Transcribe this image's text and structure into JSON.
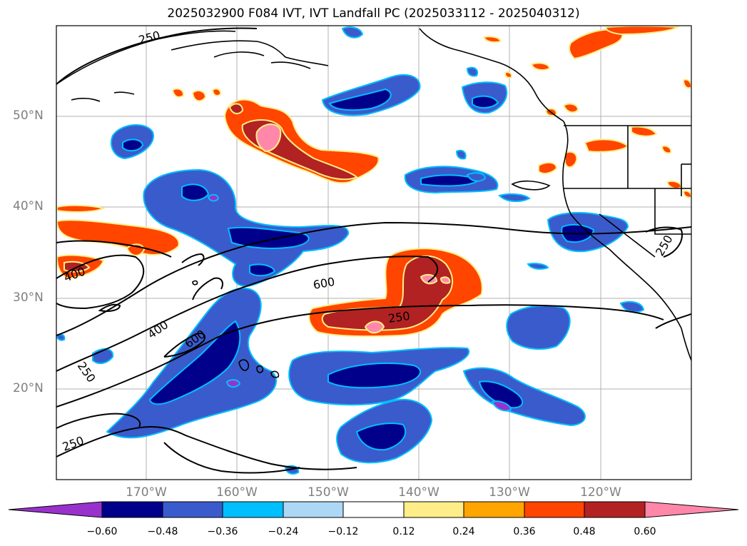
{
  "title": "2025032900 F084 IVT, IVT Landfall PC (2025033112 - 2025040312)",
  "lat_labels": [
    "50°N",
    "40°N",
    "30°N",
    "20°N"
  ],
  "lon_labels": [
    "170°W",
    "160°W",
    "150°W",
    "140°W",
    "130°W",
    "120°W"
  ],
  "colorbar": {
    "colors": [
      "#9932cc",
      "#00008b",
      "#3a5bcc",
      "#00bfff",
      "#add8f5",
      "#ffffff",
      "#ffee88",
      "#ffa500",
      "#ff4500",
      "#b22222",
      "#ff88aa"
    ],
    "tick_labels": [
      "−0.60",
      "−0.48",
      "−0.36",
      "−0.24",
      "−0.12",
      "0.12",
      "0.24",
      "0.36",
      "0.48",
      "0.60"
    ]
  },
  "contour_labels": {
    "c250_nw": "250",
    "c400_w": "400",
    "c600_c": "600",
    "c250_c": "250",
    "c400_sw": "400",
    "c600_sw": "600",
    "c250_sw1": "250",
    "c250_sw2": "250",
    "c250_e": "250"
  },
  "legend_colors": {
    "neg_strong": "#00008b",
    "neg_mid": "#3a5bcc",
    "neg_light": "#00bfff",
    "pos_light": "#ffa500",
    "pos_mid": "#ff4500",
    "pos_strong": "#b22222",
    "pos_max": "#ff88aa"
  }
}
